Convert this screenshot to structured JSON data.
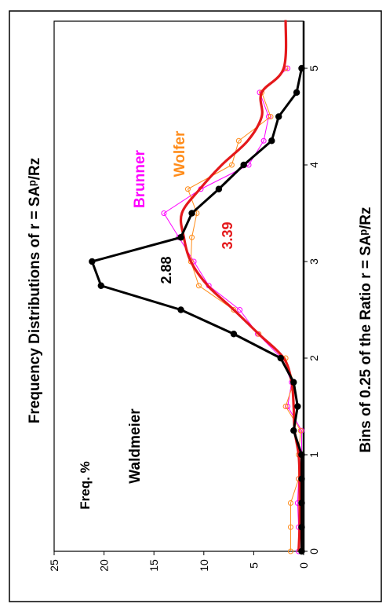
{
  "chart_data": {
    "type": "line",
    "title": "Frequency Distributions of r = SAᵖ/Rz",
    "xlabel": "Bins of 0.25 of the Ratio r = SAᵖ/Rz",
    "ylabel": "Freq. %",
    "xlim": [
      0,
      5.5
    ],
    "ylim": [
      0,
      25
    ],
    "x_ticks": [
      0,
      1,
      2,
      3,
      4,
      5
    ],
    "y_ticks": [
      0,
      5,
      10,
      15,
      20,
      25
    ],
    "orientation": "rotated 90 degrees clockwise (x axis vertical on right, y axis horizontal at bottom)",
    "grid": false,
    "annotations": [
      {
        "text": "2.88",
        "x": 2.88,
        "y": 16.5,
        "color": "#000000"
      },
      {
        "text": "3.39",
        "x": 3.39,
        "y": 8.0,
        "color": "#e4181b"
      }
    ],
    "series": [
      {
        "name": "Waldmeier",
        "color": "#000000",
        "label_at": {
          "x": 2.3,
          "y": 17.5
        },
        "x": [
          0,
          0.25,
          0.5,
          0.75,
          1.0,
          1.25,
          1.5,
          1.75,
          2.0,
          2.25,
          2.5,
          2.75,
          3.0,
          3.25,
          3.5,
          3.75,
          4.0,
          4.25,
          4.5,
          4.75,
          5.0
        ],
        "y": [
          0.2,
          0.2,
          0.2,
          0.2,
          0.2,
          1.0,
          0.6,
          1.0,
          2.3,
          7.0,
          12.3,
          20.3,
          21.2,
          12.3,
          11.2,
          8.5,
          6.0,
          3.2,
          2.5,
          0.7,
          0.2
        ]
      },
      {
        "name": "Brunner",
        "color": "#ff00ff",
        "label_at": {
          "x": 3.35,
          "y": 17.8
        },
        "x": [
          0,
          0.25,
          0.5,
          0.75,
          1.0,
          1.25,
          1.5,
          1.75,
          2.0,
          2.25,
          2.5,
          2.75,
          3.0,
          3.25,
          3.5,
          3.75,
          4.0,
          4.25,
          4.5,
          4.75,
          5.0
        ],
        "y": [
          0.5,
          0.5,
          0.6,
          0.5,
          0.2,
          0.2,
          1.6,
          1.2,
          2.2,
          4.6,
          6.4,
          9.5,
          11.0,
          12.5,
          14.0,
          10.3,
          5.5,
          4.0,
          3.5,
          4.4,
          1.6
        ]
      },
      {
        "name": "Wolfer",
        "color": "#ff8c1a",
        "label_at": {
          "x": 3.45,
          "y": 13.0
        },
        "x": [
          0,
          0.25,
          0.5,
          0.75,
          1.0,
          1.25,
          1.5,
          1.75,
          2.0,
          2.25,
          2.5,
          2.75,
          3.0,
          3.25,
          3.5,
          3.75,
          4.0,
          4.25,
          4.5,
          4.75,
          5.0
        ],
        "y": [
          1.3,
          1.3,
          1.3,
          0.5,
          0.5,
          0.3,
          1.8,
          1.0,
          1.8,
          4.5,
          7.0,
          10.5,
          11.3,
          11.2,
          10.7,
          11.6,
          7.2,
          6.5,
          3.3,
          4.2,
          1.8
        ]
      },
      {
        "name": "",
        "color": "#e4181b",
        "smooth": true,
        "x": [
          0,
          0.25,
          0.5,
          0.75,
          1.0,
          1.25,
          1.5,
          1.75,
          2.0,
          2.25,
          2.5,
          2.75,
          3.0,
          3.25,
          3.5,
          3.75,
          4.0,
          4.25,
          4.5,
          4.75,
          5.0,
          5.5
        ],
        "y": [
          0.5,
          0.4,
          0.4,
          0.4,
          0.5,
          0.9,
          1.0,
          1.2,
          2.0,
          4.5,
          7.0,
          9.6,
          11.3,
          12.0,
          12.2,
          10.4,
          8.2,
          5.6,
          4.2,
          4.2,
          2.0,
          1.8
        ]
      }
    ]
  }
}
